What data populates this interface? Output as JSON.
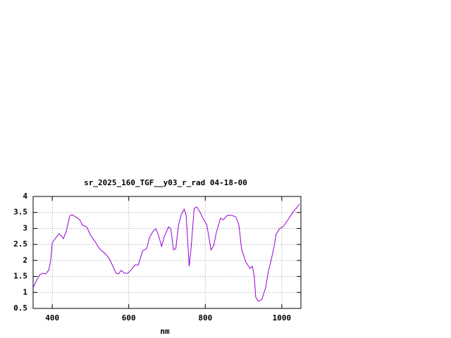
{
  "chart_data": {
    "type": "line",
    "title": "sr_2025_160_TGF__y03_r_rad 04-18-00",
    "x_label": "nm",
    "x": [
      350,
      357,
      367,
      376,
      383,
      391,
      396,
      400,
      409,
      417,
      424,
      429,
      437,
      446,
      452,
      461,
      472,
      479,
      490,
      501,
      512,
      523,
      538,
      549,
      560,
      567,
      573,
      580,
      589,
      598,
      606,
      616,
      625,
      636,
      647,
      654,
      664,
      671,
      678,
      686,
      693,
      704,
      710,
      717,
      723,
      730,
      737,
      745,
      750,
      758,
      763,
      771,
      778,
      787,
      796,
      804,
      815,
      822,
      829,
      840,
      847,
      858,
      869,
      880,
      888,
      895,
      906,
      917,
      923,
      928,
      932,
      939,
      948,
      958,
      965,
      972,
      980,
      985,
      994,
      1003,
      1013,
      1022,
      1031,
      1038,
      1046
    ],
    "series": [
      {
        "color": "#9400d3",
        "values": [
          1.15,
          1.33,
          1.55,
          1.6,
          1.58,
          1.7,
          2.0,
          2.55,
          2.7,
          2.83,
          2.77,
          2.68,
          2.92,
          3.4,
          3.43,
          3.36,
          3.27,
          3.1,
          3.05,
          2.77,
          2.59,
          2.37,
          2.22,
          2.06,
          1.78,
          1.6,
          1.58,
          1.69,
          1.6,
          1.6,
          1.7,
          1.86,
          1.86,
          2.3,
          2.37,
          2.72,
          2.92,
          2.99,
          2.77,
          2.44,
          2.75,
          3.05,
          2.99,
          2.33,
          2.37,
          3.1,
          3.43,
          3.6,
          3.41,
          1.82,
          2.39,
          3.63,
          3.67,
          3.49,
          3.27,
          3.12,
          2.33,
          2.46,
          2.88,
          3.32,
          3.27,
          3.41,
          3.41,
          3.36,
          3.1,
          2.35,
          1.95,
          1.75,
          1.82,
          1.51,
          0.85,
          0.72,
          0.78,
          1.16,
          1.66,
          2.0,
          2.44,
          2.81,
          2.99,
          3.05,
          3.21,
          3.38,
          3.54,
          3.63,
          3.76
        ]
      }
    ],
    "xlim": [
      350,
      1050
    ],
    "xticks": [
      400,
      600,
      800,
      1000
    ],
    "ylim": [
      0.5,
      4
    ],
    "yticks": [
      0.5,
      1,
      1.5,
      2,
      2.5,
      3,
      3.5,
      4
    ],
    "grid": true
  }
}
